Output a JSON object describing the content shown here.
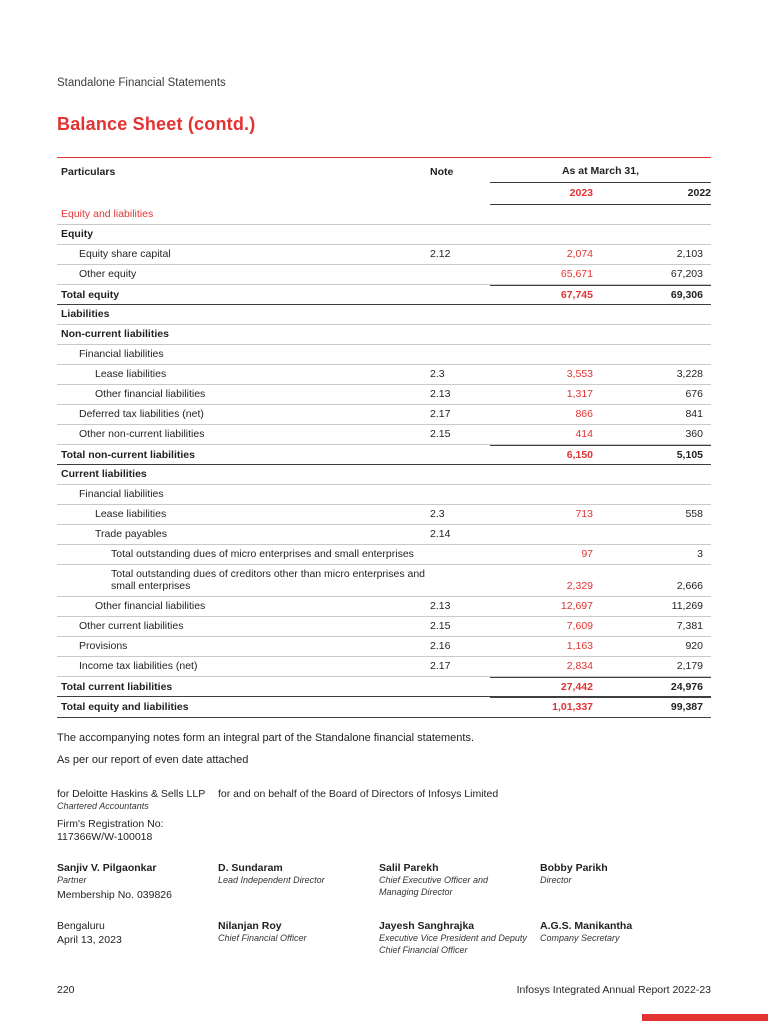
{
  "colors": {
    "accent": "#e23231"
  },
  "page": {
    "eyebrow": "Standalone Financial Statements",
    "title": "Balance Sheet (contd.)"
  },
  "table": {
    "col_particulars": "Particulars",
    "col_note": "Note",
    "col_date": "As at March 31,",
    "col_year1": "2023",
    "col_year2": "2022",
    "rows": [
      {
        "label": "Equity and liabilities",
        "indent": 0,
        "style": "section",
        "note": "",
        "v2023": "",
        "v2022": ""
      },
      {
        "label": "Equity",
        "indent": 0,
        "style": "bold",
        "note": "",
        "v2023": "",
        "v2022": ""
      },
      {
        "label": "Equity share capital",
        "indent": 1,
        "style": "normal",
        "note": "2.12",
        "v2023": "2,074",
        "v2022": "2,103"
      },
      {
        "label": "Other equity",
        "indent": 1,
        "style": "normal",
        "note": "",
        "v2023": "65,671",
        "v2022": "67,203"
      },
      {
        "label": "Total equity",
        "indent": 0,
        "style": "total",
        "note": "",
        "v2023": "67,745",
        "v2022": "69,306"
      },
      {
        "label": "Liabilities",
        "indent": 0,
        "style": "bold",
        "note": "",
        "v2023": "",
        "v2022": ""
      },
      {
        "label": "Non-current liabilities",
        "indent": 0,
        "style": "bold",
        "note": "",
        "v2023": "",
        "v2022": ""
      },
      {
        "label": "Financial liabilities",
        "indent": 1,
        "style": "normal",
        "note": "",
        "v2023": "",
        "v2022": ""
      },
      {
        "label": "Lease liabilities",
        "indent": 2,
        "style": "normal",
        "note": "2.3",
        "v2023": "3,553",
        "v2022": "3,228"
      },
      {
        "label": "Other financial liabilities",
        "indent": 2,
        "style": "normal",
        "note": "2.13",
        "v2023": "1,317",
        "v2022": "676"
      },
      {
        "label": "Deferred tax liabilities (net)",
        "indent": 1,
        "style": "normal",
        "note": "2.17",
        "v2023": "866",
        "v2022": "841"
      },
      {
        "label": "Other non-current liabilities",
        "indent": 1,
        "style": "normal",
        "note": "2.15",
        "v2023": "414",
        "v2022": "360"
      },
      {
        "label": "Total non-current liabilities",
        "indent": 0,
        "style": "total",
        "note": "",
        "v2023": "6,150",
        "v2022": "5,105"
      },
      {
        "label": "Current liabilities",
        "indent": 0,
        "style": "bold",
        "note": "",
        "v2023": "",
        "v2022": ""
      },
      {
        "label": "Financial liabilities",
        "indent": 1,
        "style": "normal",
        "note": "",
        "v2023": "",
        "v2022": ""
      },
      {
        "label": "Lease liabilities",
        "indent": 2,
        "style": "normal",
        "note": "2.3",
        "v2023": "713",
        "v2022": "558"
      },
      {
        "label": "Trade payables",
        "indent": 2,
        "style": "normal",
        "note": "2.14",
        "v2023": "",
        "v2022": ""
      },
      {
        "label": "Total outstanding dues of micro enterprises and small enterprises",
        "indent": 3,
        "style": "normal",
        "note": "",
        "v2023": "97",
        "v2022": "3"
      },
      {
        "label": "Total outstanding dues of creditors other than micro enterprises and small enterprises",
        "indent": 3,
        "style": "normal",
        "note": "",
        "v2023": "2,329",
        "v2022": "2,666"
      },
      {
        "label": "Other financial liabilities",
        "indent": 2,
        "style": "normal",
        "note": "2.13",
        "v2023": "12,697",
        "v2022": "11,269"
      },
      {
        "label": "Other current liabilities",
        "indent": 1,
        "style": "normal",
        "note": "2.15",
        "v2023": "7,609",
        "v2022": "7,381"
      },
      {
        "label": "Provisions",
        "indent": 1,
        "style": "normal",
        "note": "2.16",
        "v2023": "1,163",
        "v2022": "920"
      },
      {
        "label": "Income tax liabilities (net)",
        "indent": 1,
        "style": "normal",
        "note": "2.17",
        "v2023": "2,834",
        "v2022": "2,179"
      },
      {
        "label": "Total current liabilities",
        "indent": 0,
        "style": "total",
        "note": "",
        "v2023": "27,442",
        "v2022": "24,976"
      },
      {
        "label": "Total equity and liabilities",
        "indent": 0,
        "style": "total",
        "note": "",
        "v2023": "1,01,337",
        "v2022": "99,387"
      }
    ]
  },
  "notes": {
    "line1": "The accompanying notes form an integral part of the Standalone financial statements.",
    "line2": "As per our report of even date attached"
  },
  "signatures": {
    "auditor": {
      "for_line": "for Deloitte Haskins & Sells LLP",
      "firm_type": "Chartered Accountants",
      "reg_label": "Firm's Registration No:",
      "reg_no": "117366W/W-100018"
    },
    "board_line": "for and on behalf of the Board of Directors of Infosys Limited",
    "row1": [
      {
        "name": "Sanjiv V. Pilgaonkar",
        "title": "Partner",
        "extra": "Membership No. 039826"
      },
      {
        "name": "D. Sundaram",
        "title": "Lead Independent Director"
      },
      {
        "name": "Salil Parekh",
        "title": "Chief Executive Officer and Managing Director"
      },
      {
        "name": "Bobby Parikh",
        "title": "Director"
      }
    ],
    "row2": [
      {
        "name": "Bengaluru",
        "bold": false,
        "extra": "April 13, 2023"
      },
      {
        "name": "Nilanjan Roy",
        "title": "Chief Financial Officer"
      },
      {
        "name": "Jayesh Sanghrajka",
        "title": "Executive Vice President and Deputy Chief Financial Officer"
      },
      {
        "name": "A.G.S. Manikantha",
        "title": "Company Secretary"
      }
    ]
  },
  "footer": {
    "page_number": "220",
    "report_title": "Infosys Integrated Annual Report 2022-23"
  }
}
